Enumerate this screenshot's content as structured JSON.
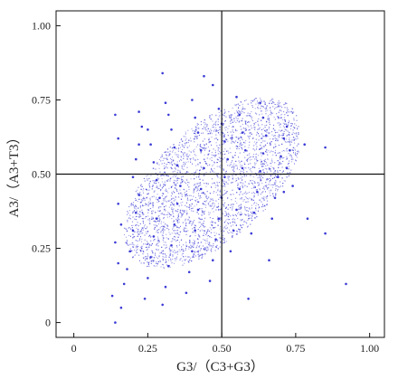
{
  "chart_data": {
    "type": "scatter",
    "title": "",
    "xlabel": "G3/（C3+G3）",
    "ylabel": "A3/（A3+T3）",
    "xlim": [
      -0.06,
      1.05
    ],
    "ylim": [
      -0.05,
      1.05
    ],
    "x_ticks": [
      {
        "value": 0,
        "label": "0"
      },
      {
        "value": 0.25,
        "label": "0.25"
      },
      {
        "value": 0.5,
        "label": "0.50"
      },
      {
        "value": 0.75,
        "label": "0.75"
      },
      {
        "value": 1.0,
        "label": "1.00"
      }
    ],
    "y_ticks": [
      {
        "value": 0,
        "label": "0"
      },
      {
        "value": 0.25,
        "label": "0.25"
      },
      {
        "value": 0.5,
        "label": "0.50"
      },
      {
        "value": 0.75,
        "label": "0.75"
      },
      {
        "value": 1.0,
        "label": "1.00"
      }
    ],
    "reference_lines": {
      "x": 0.5,
      "y": 0.5
    },
    "grid": false,
    "legend": "none",
    "point_color": "#3b3bd6",
    "line_color": "#111111",
    "points": [
      [
        0.14,
        0.0
      ],
      [
        0.16,
        0.05
      ],
      [
        0.13,
        0.09
      ],
      [
        0.17,
        0.13
      ],
      [
        0.15,
        0.2
      ],
      [
        0.14,
        0.27
      ],
      [
        0.16,
        0.33
      ],
      [
        0.15,
        0.4
      ],
      [
        0.14,
        0.7
      ],
      [
        0.15,
        0.62
      ],
      [
        0.18,
        0.18
      ],
      [
        0.19,
        0.24
      ],
      [
        0.2,
        0.31
      ],
      [
        0.21,
        0.37
      ],
      [
        0.22,
        0.43
      ],
      [
        0.2,
        0.49
      ],
      [
        0.21,
        0.55
      ],
      [
        0.22,
        0.6
      ],
      [
        0.23,
        0.66
      ],
      [
        0.22,
        0.71
      ],
      [
        0.24,
        0.08
      ],
      [
        0.25,
        0.15
      ],
      [
        0.26,
        0.22
      ],
      [
        0.27,
        0.29
      ],
      [
        0.28,
        0.35
      ],
      [
        0.29,
        0.42
      ],
      [
        0.28,
        0.48
      ],
      [
        0.27,
        0.54
      ],
      [
        0.26,
        0.6
      ],
      [
        0.25,
        0.65
      ],
      [
        0.3,
        0.06
      ],
      [
        0.31,
        0.12
      ],
      [
        0.32,
        0.19
      ],
      [
        0.33,
        0.26
      ],
      [
        0.34,
        0.33
      ],
      [
        0.35,
        0.4
      ],
      [
        0.36,
        0.46
      ],
      [
        0.35,
        0.53
      ],
      [
        0.34,
        0.59
      ],
      [
        0.33,
        0.65
      ],
      [
        0.32,
        0.7
      ],
      [
        0.31,
        0.74
      ],
      [
        0.38,
        0.1
      ],
      [
        0.39,
        0.17
      ],
      [
        0.4,
        0.24
      ],
      [
        0.41,
        0.31
      ],
      [
        0.42,
        0.38
      ],
      [
        0.43,
        0.45
      ],
      [
        0.44,
        0.52
      ],
      [
        0.43,
        0.58
      ],
      [
        0.42,
        0.64
      ],
      [
        0.41,
        0.69
      ],
      [
        0.4,
        0.75
      ],
      [
        0.46,
        0.14
      ],
      [
        0.47,
        0.21
      ],
      [
        0.48,
        0.28
      ],
      [
        0.49,
        0.35
      ],
      [
        0.5,
        0.42
      ],
      [
        0.51,
        0.49
      ],
      [
        0.52,
        0.55
      ],
      [
        0.51,
        0.61
      ],
      [
        0.5,
        0.67
      ],
      [
        0.49,
        0.72
      ],
      [
        0.53,
        0.24
      ],
      [
        0.54,
        0.31
      ],
      [
        0.55,
        0.38
      ],
      [
        0.56,
        0.45
      ],
      [
        0.57,
        0.52
      ],
      [
        0.58,
        0.58
      ],
      [
        0.57,
        0.64
      ],
      [
        0.56,
        0.7
      ],
      [
        0.55,
        0.76
      ],
      [
        0.6,
        0.3
      ],
      [
        0.61,
        0.37
      ],
      [
        0.62,
        0.44
      ],
      [
        0.63,
        0.51
      ],
      [
        0.64,
        0.57
      ],
      [
        0.65,
        0.63
      ],
      [
        0.64,
        0.69
      ],
      [
        0.63,
        0.74
      ],
      [
        0.67,
        0.35
      ],
      [
        0.68,
        0.42
      ],
      [
        0.69,
        0.49
      ],
      [
        0.7,
        0.56
      ],
      [
        0.71,
        0.62
      ],
      [
        0.72,
        0.66
      ],
      [
        0.73,
        0.58
      ],
      [
        0.72,
        0.52
      ],
      [
        0.74,
        0.46
      ],
      [
        0.71,
        0.44
      ],
      [
        0.79,
        0.35
      ],
      [
        0.85,
        0.3
      ],
      [
        0.92,
        0.13
      ],
      [
        0.85,
        0.59
      ],
      [
        0.78,
        0.6
      ],
      [
        0.44,
        0.83
      ],
      [
        0.47,
        0.8
      ],
      [
        0.3,
        0.84
      ],
      [
        0.59,
        0.08
      ],
      [
        0.66,
        0.21
      ]
    ]
  }
}
